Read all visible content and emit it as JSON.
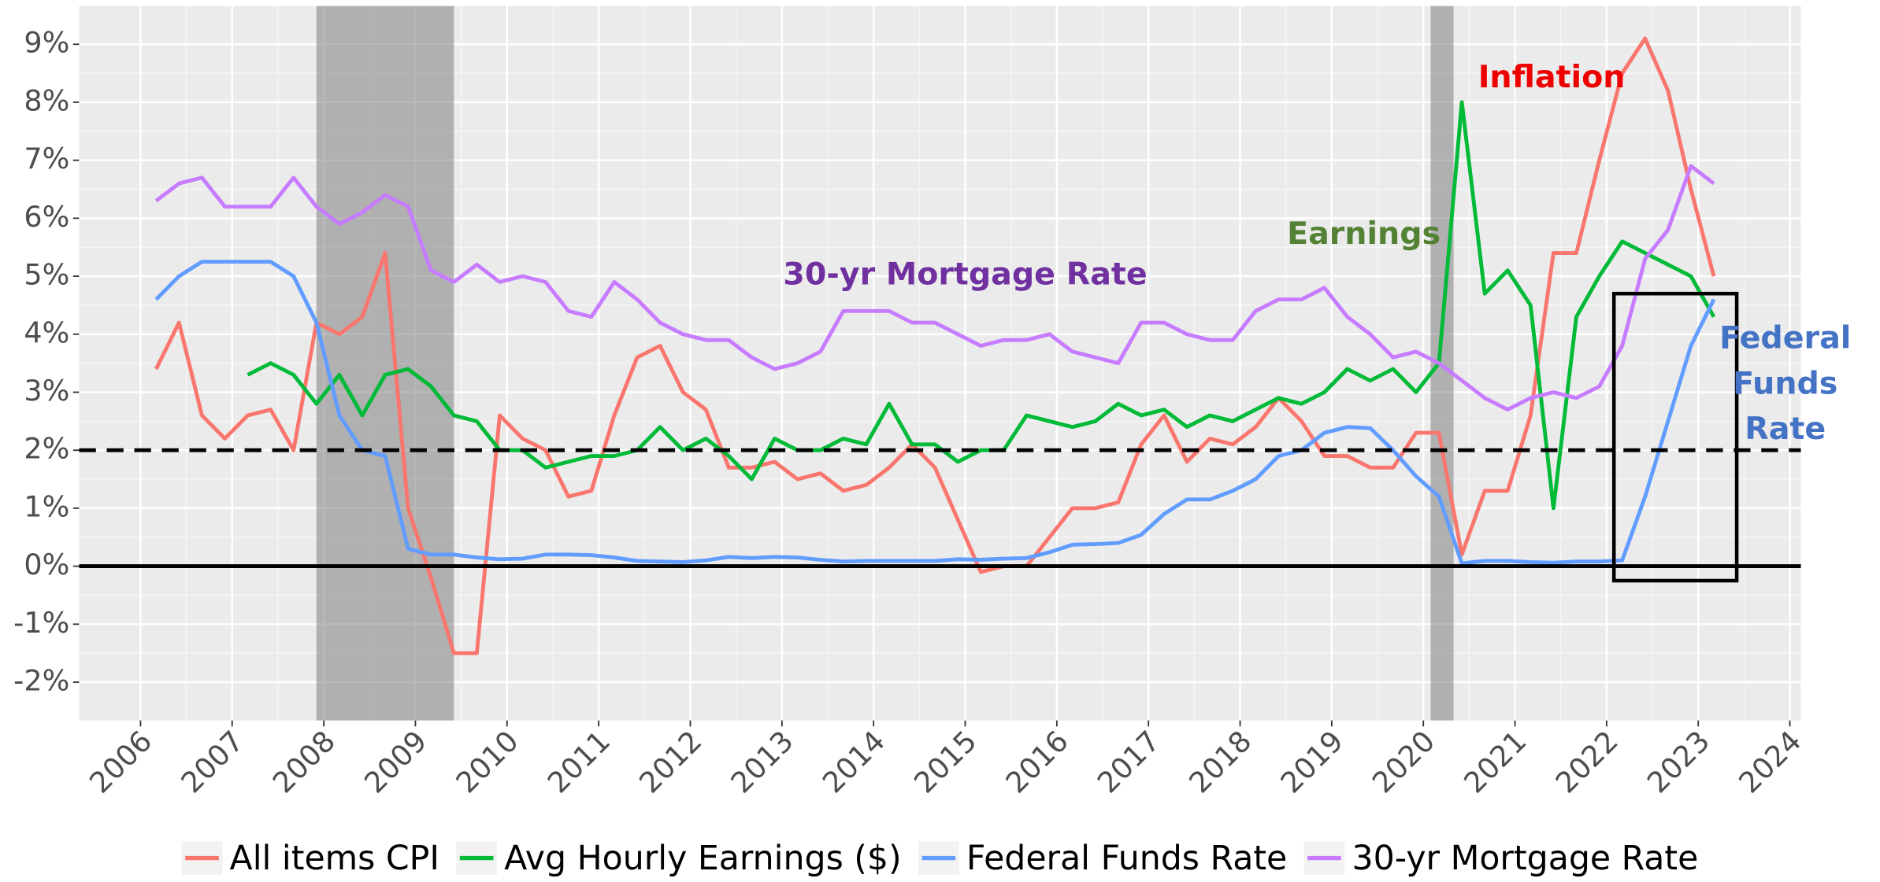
{
  "chart_data": {
    "type": "line",
    "x": [
      2006.17,
      2006.42,
      2006.67,
      2006.92,
      2007.17,
      2007.42,
      2007.67,
      2007.92,
      2008.17,
      2008.42,
      2008.67,
      2008.92,
      2009.17,
      2009.42,
      2009.67,
      2009.92,
      2010.17,
      2010.42,
      2010.67,
      2010.92,
      2011.17,
      2011.42,
      2011.67,
      2011.92,
      2012.17,
      2012.42,
      2012.67,
      2012.92,
      2013.17,
      2013.42,
      2013.67,
      2013.92,
      2014.17,
      2014.42,
      2014.67,
      2014.92,
      2015.17,
      2015.42,
      2015.67,
      2015.92,
      2016.17,
      2016.42,
      2016.67,
      2016.92,
      2017.17,
      2017.42,
      2017.67,
      2017.92,
      2018.17,
      2018.42,
      2018.67,
      2018.92,
      2019.17,
      2019.42,
      2019.67,
      2019.92,
      2020.17,
      2020.42,
      2020.67,
      2020.92,
      2021.17,
      2021.42,
      2021.67,
      2021.92,
      2022.17,
      2022.42,
      2022.67,
      2022.92,
      2023.17
    ],
    "series": [
      {
        "name": "All items CPI",
        "color": "#f8766d",
        "values": [
          3.4,
          4.2,
          2.6,
          2.2,
          2.6,
          2.7,
          2.0,
          4.2,
          4.0,
          4.3,
          5.4,
          1.0,
          -0.2,
          -1.5,
          -1.5,
          2.6,
          2.2,
          2.0,
          1.2,
          1.3,
          2.6,
          3.6,
          3.8,
          3.0,
          2.7,
          1.7,
          1.7,
          1.8,
          1.5,
          1.6,
          1.3,
          1.4,
          1.7,
          2.1,
          1.7,
          0.8,
          -0.1,
          0.0,
          0.0,
          0.5,
          1.0,
          1.0,
          1.1,
          2.1,
          2.6,
          1.8,
          2.2,
          2.1,
          2.4,
          2.9,
          2.5,
          1.9,
          1.9,
          1.7,
          1.7,
          2.3,
          2.3,
          0.2,
          1.3,
          1.3,
          2.6,
          5.4,
          5.4,
          7.0,
          8.5,
          9.1,
          8.2,
          6.5,
          5.0
        ]
      },
      {
        "name": "Avg Hourly Earnings ($)",
        "color": "#00ba38",
        "values": [
          null,
          null,
          null,
          null,
          3.3,
          3.5,
          3.3,
          2.8,
          3.3,
          2.6,
          3.3,
          3.4,
          3.1,
          2.6,
          2.5,
          2.0,
          2.0,
          1.7,
          1.8,
          1.9,
          1.9,
          2.0,
          2.4,
          2.0,
          2.2,
          1.9,
          1.5,
          2.2,
          2.0,
          2.0,
          2.2,
          2.1,
          2.8,
          2.1,
          2.1,
          1.8,
          2.0,
          2.0,
          2.6,
          2.5,
          2.4,
          2.5,
          2.8,
          2.6,
          2.7,
          2.4,
          2.6,
          2.5,
          2.7,
          2.9,
          2.8,
          3.0,
          3.4,
          3.2,
          3.4,
          3.0,
          3.5,
          8.0,
          4.7,
          5.1,
          4.5,
          1.0,
          4.3,
          5.0,
          5.6,
          5.4,
          5.2,
          5.0,
          4.3
        ]
      },
      {
        "name": "Federal Funds Rate",
        "color": "#619cff",
        "values": [
          4.6,
          5.0,
          5.25,
          5.25,
          5.25,
          5.25,
          5.0,
          4.2,
          2.6,
          2.0,
          1.9,
          0.3,
          0.2,
          0.2,
          0.15,
          0.12,
          0.13,
          0.2,
          0.2,
          0.19,
          0.15,
          0.09,
          0.08,
          0.07,
          0.1,
          0.16,
          0.14,
          0.16,
          0.15,
          0.11,
          0.08,
          0.09,
          0.09,
          0.09,
          0.09,
          0.12,
          0.11,
          0.13,
          0.14,
          0.24,
          0.37,
          0.38,
          0.4,
          0.54,
          0.9,
          1.15,
          1.15,
          1.3,
          1.5,
          1.9,
          2.0,
          2.3,
          2.4,
          2.38,
          2.0,
          1.55,
          1.2,
          0.05,
          0.09,
          0.09,
          0.07,
          0.06,
          0.08,
          0.08,
          0.1,
          1.2,
          2.5,
          3.8,
          4.6
        ]
      },
      {
        "name": "30-yr Mortgage Rate",
        "color": "#c77cff",
        "values": [
          6.3,
          6.6,
          6.7,
          6.2,
          6.2,
          6.2,
          6.7,
          6.2,
          5.9,
          6.1,
          6.4,
          6.2,
          5.1,
          4.9,
          5.2,
          4.9,
          5.0,
          4.9,
          4.4,
          4.3,
          4.9,
          4.6,
          4.2,
          4.0,
          3.9,
          3.9,
          3.6,
          3.4,
          3.5,
          3.7,
          4.4,
          4.4,
          4.4,
          4.2,
          4.2,
          4.0,
          3.8,
          3.9,
          3.9,
          4.0,
          3.7,
          3.6,
          3.5,
          4.2,
          4.2,
          4.0,
          3.9,
          3.9,
          4.4,
          4.6,
          4.6,
          4.8,
          4.3,
          4.0,
          3.6,
          3.7,
          3.5,
          3.2,
          2.9,
          2.7,
          2.9,
          3.0,
          2.9,
          3.1,
          3.8,
          5.3,
          5.8,
          6.9,
          6.6
        ]
      }
    ],
    "xlim": [
      2005.33,
      2024.12
    ],
    "xticks": [
      2006,
      2007,
      2008,
      2009,
      2010,
      2011,
      2012,
      2013,
      2014,
      2015,
      2016,
      2017,
      2018,
      2019,
      2020,
      2021,
      2022,
      2023,
      2024
    ],
    "ylim": [
      -2.66,
      9.66
    ],
    "yticks": [
      {
        "value": -2,
        "label": "-2%"
      },
      {
        "value": -1,
        "label": "-1%"
      },
      {
        "value": 0,
        "label": "0%"
      },
      {
        "value": 1,
        "label": "1%"
      },
      {
        "value": 2,
        "label": "2%"
      },
      {
        "value": 3,
        "label": "3%"
      },
      {
        "value": 4,
        "label": "4%"
      },
      {
        "value": 5,
        "label": "5%"
      },
      {
        "value": 6,
        "label": "6%"
      },
      {
        "value": 7,
        "label": "7%"
      },
      {
        "value": 8,
        "label": "8%"
      },
      {
        "value": 9,
        "label": "9%"
      }
    ],
    "grid": true,
    "legend": "bottom",
    "shaded_regions": [
      [
        2007.92,
        2009.42
      ],
      [
        2020.08,
        2020.33
      ]
    ],
    "hlines": [
      {
        "value": 2,
        "style": "dashed"
      },
      {
        "value": 0,
        "style": "solid"
      }
    ],
    "box": {
      "x": [
        2022.08,
        2023.42
      ],
      "y": [
        -0.25,
        4.7
      ]
    },
    "annotations": [
      {
        "text": "Inflation",
        "x": 2021.4,
        "y": 8.4,
        "color": "#ee0000"
      },
      {
        "text": "Earnings",
        "x": 2019.35,
        "y": 5.7,
        "color": "#548235"
      },
      {
        "text": "30-yr Mortgage Rate",
        "x": 2015.0,
        "y": 5.0,
        "color": "#7030a0"
      },
      {
        "lines": [
          "Federal",
          "Funds",
          "Rate"
        ],
        "x": 2023.95,
        "y": 3.9,
        "color": "#4472c4"
      }
    ]
  }
}
